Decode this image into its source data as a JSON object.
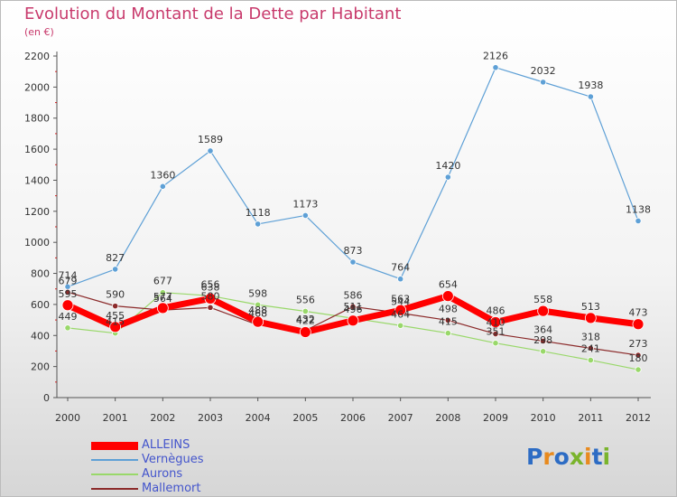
{
  "header": {
    "title": "Evolution du Montant de la Dette par Habitant",
    "subtitle": "(en €)"
  },
  "logo": {
    "text": "Proxiti",
    "colors": [
      "#2d6cc4",
      "#e88a1e",
      "#2d6cc4",
      "#7ab42c",
      "#e88a1e",
      "#2d6cc4",
      "#7ab42c"
    ]
  },
  "chart_data": {
    "type": "line",
    "title": "Evolution du Montant de la Dette par Habitant",
    "subtitle": "(en €)",
    "x": [
      "2000",
      "2001",
      "2002",
      "2003",
      "2004",
      "2005",
      "2006",
      "2007",
      "2008",
      "2009",
      "2010",
      "2011",
      "2012"
    ],
    "ylim": [
      0,
      2200
    ],
    "yticks": [
      0,
      200,
      400,
      600,
      800,
      1000,
      1200,
      1400,
      1600,
      1800,
      2000,
      2200
    ],
    "grid": false,
    "legend_position": "bottom-left",
    "series": [
      {
        "name": "ALLEINS",
        "color": "#ff0000",
        "values": [
          595,
          455,
          577,
          638,
          488,
          422,
          496,
          563,
          654,
          486,
          558,
          513,
          473
        ]
      },
      {
        "name": "Vernègues",
        "color": "#5ea0d6",
        "values": [
          714,
          827,
          1360,
          1589,
          1118,
          1173,
          873,
          764,
          1420,
          2126,
          2032,
          1938,
          1138
        ]
      },
      {
        "name": "Aurons",
        "color": "#99d86a",
        "values": [
          449,
          415,
          677,
          656,
          598,
          556,
          511,
          464,
          415,
          351,
          298,
          241,
          180
        ]
      },
      {
        "name": "Mallemort",
        "color": "#8b2a2a",
        "values": [
          679,
          590,
          564,
          580,
          468,
          432,
          586,
          544,
          498,
          410,
          364,
          318,
          273
        ]
      }
    ],
    "data_labels": {
      "ALLEINS": [
        "595",
        "455",
        "577",
        "638",
        "488",
        "422",
        "496",
        "563",
        "654",
        "486",
        "558",
        "513",
        "473"
      ],
      "Vernègues": [
        "714",
        "827",
        "1360",
        "1589",
        "1118",
        "1173",
        "873",
        "764",
        "1420",
        "2126",
        "2032",
        "1938",
        "1138"
      ],
      "Aurons": [
        "449",
        "415",
        "677",
        "656",
        "598",
        "556",
        "511",
        "464",
        "415",
        "351",
        "298",
        "241",
        "180"
      ],
      "Mallemort": [
        "679",
        "590",
        "564",
        "580",
        "468",
        "432",
        "586",
        "544",
        "498",
        "410",
        "364",
        "318",
        "273"
      ]
    }
  }
}
